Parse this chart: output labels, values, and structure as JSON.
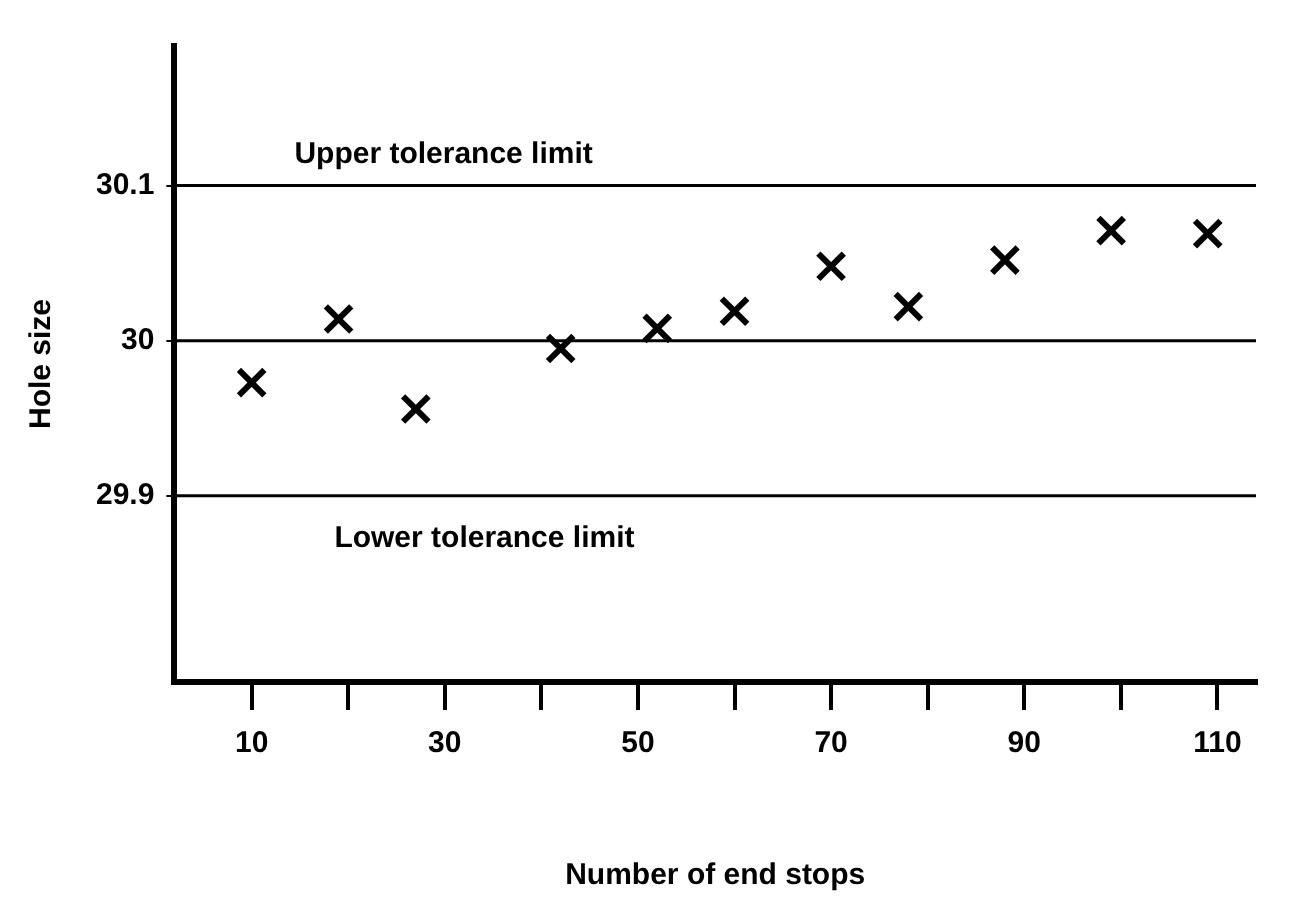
{
  "chart_data": {
    "type": "scatter",
    "xlabel": "Number of end stops",
    "ylabel": "Hole size",
    "x": [
      10,
      19,
      27,
      42,
      52,
      60,
      70,
      78,
      88,
      99,
      109
    ],
    "values": [
      29.973,
      30.014,
      29.956,
      29.995,
      30.008,
      30.019,
      30.048,
      30.022,
      30.052,
      30.071,
      30.069
    ],
    "color": "#000000",
    "marker": "cross",
    "grid": false,
    "legend": false,
    "xlim": [
      2,
      114
    ],
    "ylim": [
      29.78,
      30.19
    ],
    "xticks": [
      10,
      {
        "value": 20,
        "label": null
      },
      30,
      {
        "value": 40,
        "label": null
      },
      50,
      {
        "value": 60,
        "label": null
      },
      70,
      {
        "value": 80,
        "label": null
      },
      90,
      {
        "value": 100,
        "label": null
      },
      110
    ],
    "yticks": [
      29.9,
      30,
      30.1
    ],
    "ref_lines": [
      {
        "axis": "y",
        "value": 30.1,
        "label": "Upper tolerance limit"
      },
      {
        "axis": "y",
        "value": 30
      },
      {
        "axis": "y",
        "value": 29.9,
        "label": "Lower tolerance limit"
      }
    ]
  }
}
